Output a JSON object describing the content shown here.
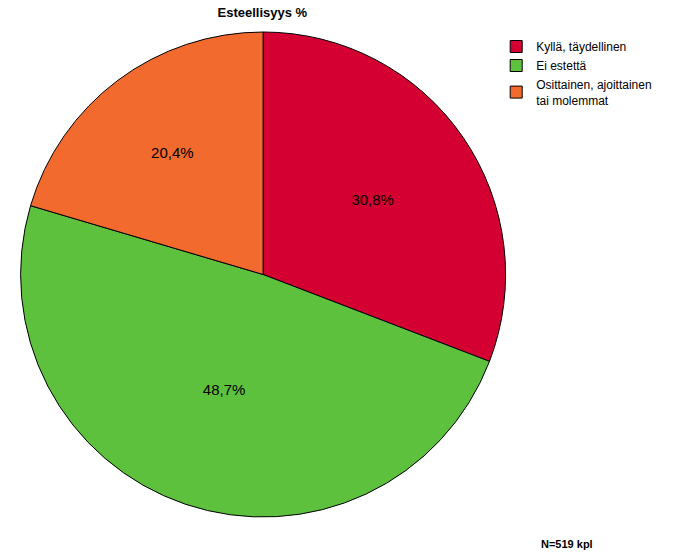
{
  "chart_data": {
    "type": "pie",
    "title": "Esteellisyys %",
    "categories": [
      "Kyllä, täydellinen",
      "Ei estettä",
      "Osittainen, ajoittainen tai molemmat"
    ],
    "values": [
      30.8,
      48.7,
      20.4
    ],
    "value_labels": [
      "30,8%",
      "48,7%",
      "20,4%"
    ],
    "colors": [
      "#d50032",
      "#5ec13e",
      "#f26a2e"
    ],
    "data_labels": true,
    "legend": "top right",
    "annotation": "N=519 kpl"
  }
}
